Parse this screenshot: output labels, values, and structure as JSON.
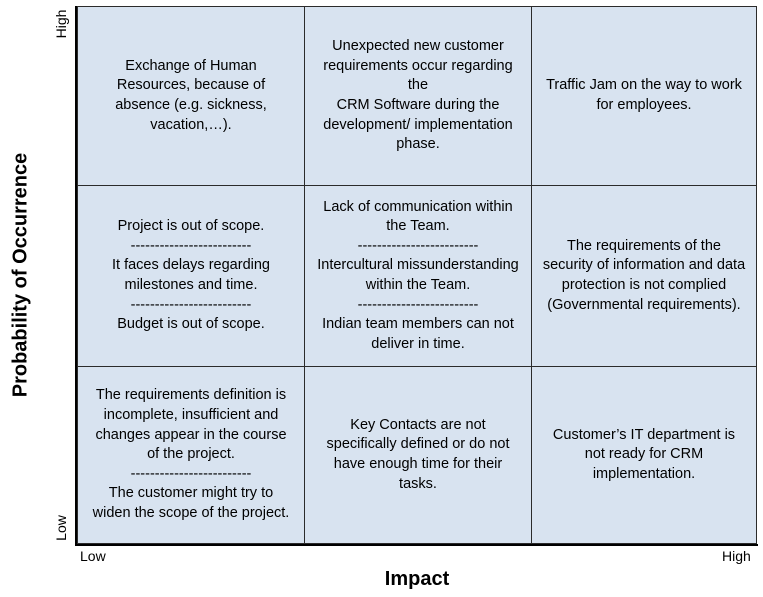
{
  "axes": {
    "y_title": "Probability of Occurrence",
    "y_high": "High",
    "y_low": "Low",
    "x_title": "Impact",
    "x_low": "Low",
    "x_high": "High"
  },
  "matrix": {
    "rows": [
      {
        "probability": "High",
        "cells": [
          {
            "impact": "Low",
            "text": "Exchange of Human\nResources, because of\nabsence (e.g. sickness,\nvacation,…)."
          },
          {
            "impact": "Medium",
            "text": "Unexpected new customer\nrequirements occur regarding\nthe\nCRM Software during the\ndevelopment/ implementation\nphase."
          },
          {
            "impact": "High",
            "text": "Traffic Jam on the way to work\nfor employees."
          }
        ]
      },
      {
        "probability": "Medium",
        "cells": [
          {
            "impact": "Low",
            "text": "Project is out of scope.\n-------------------------\nIt faces delays regarding\nmilestones and time.\n-------------------------\nBudget is out of scope."
          },
          {
            "impact": "Medium",
            "text": "Lack of communication within\nthe Team.\n-------------------------\nIntercultural missunderstanding\nwithin the Team.\n-------------------------\nIndian team members can not\ndeliver in time."
          },
          {
            "impact": "High",
            "text": "The requirements of the\nsecurity of information and data\nprotection is not complied\n(Governmental requirements)."
          }
        ]
      },
      {
        "probability": "Low",
        "cells": [
          {
            "impact": "Low",
            "text": "The requirements definition is\nincomplete, insufficient and\nchanges appear in the course\nof the project.\n-------------------------\nThe customer might try to\nwiden the scope of the project."
          },
          {
            "impact": "Medium",
            "text": "Key Contacts are not\nspecifically defined or do not\nhave enough time for their\ntasks."
          },
          {
            "impact": "High",
            "text": "Customer’s IT department is\nnot ready for CRM\nimplementation."
          }
        ]
      }
    ]
  },
  "colors": {
    "cell_fill": "#d8e3f0",
    "grid_line": "#2b2b2b",
    "axis_line": "#000000"
  }
}
